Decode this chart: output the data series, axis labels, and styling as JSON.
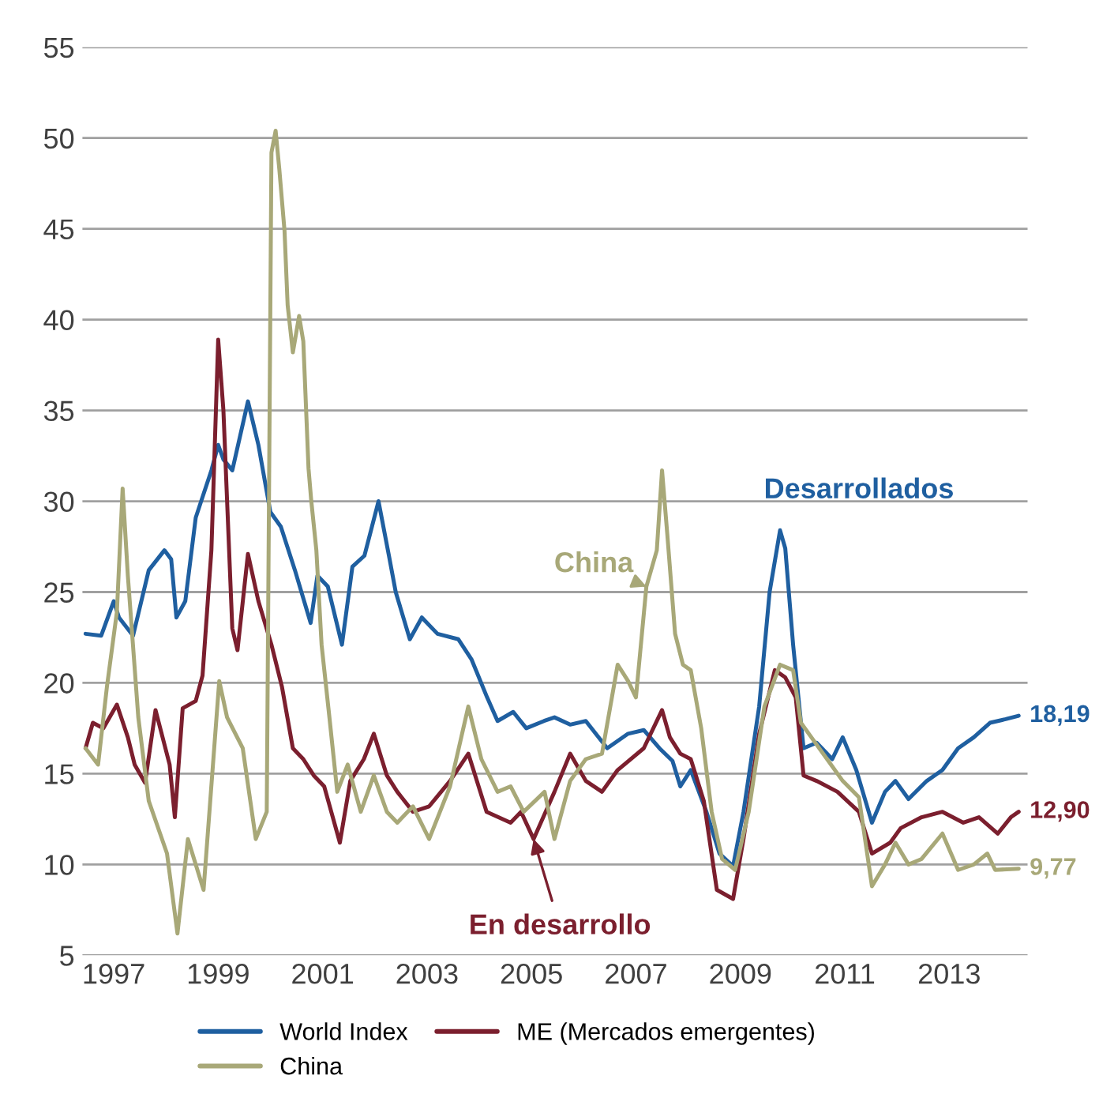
{
  "chart_data": {
    "type": "line",
    "xlim": [
      1996.4,
      2014.5
    ],
    "xticks": [
      1997,
      1999,
      2001,
      2003,
      2005,
      2007,
      2009,
      2011,
      2013
    ],
    "ylim": [
      5,
      55
    ],
    "yticks": [
      5,
      10,
      15,
      20,
      25,
      30,
      35,
      40,
      45,
      50,
      55
    ],
    "grid": "y",
    "legend": "bottom",
    "marker": "none",
    "line_style": "solid",
    "series": [
      {
        "name": "World Index",
        "color": "#1f5fa0",
        "x": [
          1996.46,
          1996.76,
          1997.0,
          1997.1,
          1997.37,
          1997.67,
          1997.97,
          1998.1,
          1998.2,
          1998.37,
          1998.57,
          1998.87,
          1999.0,
          1999.1,
          1999.27,
          1999.57,
          1999.77,
          2000.0,
          2000.2,
          2000.47,
          2000.77,
          2000.9,
          2001.1,
          2001.37,
          2001.57,
          2001.8,
          2002.07,
          2002.27,
          2002.4,
          2002.67,
          2002.9,
          2003.2,
          2003.6,
          2003.85,
          2004.15,
          2004.35,
          2004.65,
          2004.9,
          2005.24,
          2005.44,
          2005.74,
          2006.04,
          2006.45,
          2006.85,
          2007.15,
          2007.45,
          2007.7,
          2007.85,
          2008.05,
          2008.35,
          2008.6,
          2008.86,
          2009.06,
          2009.36,
          2009.56,
          2009.76,
          2009.86,
          2010.01,
          2010.21,
          2010.46,
          2010.76,
          2010.96,
          2011.22,
          2011.52,
          2011.77,
          2011.97,
          2012.22,
          2012.57,
          2012.87,
          2013.17,
          2013.47,
          2013.78,
          2014.08,
          2014.33
        ],
        "values": [
          22.7,
          22.6,
          24.5,
          23.6,
          22.6,
          26.2,
          27.3,
          26.8,
          23.6,
          24.5,
          29.1,
          31.7,
          33.1,
          32.3,
          31.7,
          35.5,
          33.1,
          29.4,
          28.6,
          26.2,
          23.3,
          25.9,
          25.3,
          22.1,
          26.4,
          27.0,
          30.0,
          27.0,
          25.0,
          22.4,
          23.6,
          22.7,
          22.4,
          21.3,
          19.2,
          17.9,
          18.4,
          17.5,
          17.9,
          18.1,
          17.7,
          17.9,
          16.4,
          17.2,
          17.4,
          16.4,
          15.7,
          14.3,
          15.2,
          12.9,
          10.6,
          9.9,
          12.9,
          18.7,
          25.0,
          28.4,
          27.4,
          22.1,
          16.4,
          16.7,
          15.8,
          17.0,
          15.2,
          12.3,
          14.0,
          14.6,
          13.6,
          14.6,
          15.2,
          16.4,
          17.0,
          17.8,
          18.0,
          18.19
        ]
      },
      {
        "name": "ME (Mercados emergentes)",
        "color": "#7b1f2e",
        "x": [
          1996.46,
          1996.6,
          1996.8,
          1997.06,
          1997.27,
          1997.4,
          1997.6,
          1997.8,
          1998.07,
          1998.17,
          1998.32,
          1998.57,
          1998.7,
          1998.87,
          1999.0,
          1999.1,
          1999.27,
          1999.37,
          1999.57,
          1999.77,
          2000.02,
          2000.22,
          2000.43,
          2000.63,
          2000.83,
          2001.03,
          2001.33,
          2001.53,
          2001.79,
          2001.98,
          2002.23,
          2002.43,
          2002.73,
          2003.04,
          2003.44,
          2003.79,
          2004.14,
          2004.6,
          2004.8,
          2005.04,
          2005.44,
          2005.74,
          2006.04,
          2006.35,
          2006.65,
          2007.15,
          2007.5,
          2007.65,
          2007.85,
          2008.05,
          2008.3,
          2008.55,
          2008.86,
          2009.06,
          2009.36,
          2009.66,
          2009.86,
          2010.06,
          2010.21,
          2010.46,
          2010.86,
          2011.27,
          2011.52,
          2011.87,
          2012.07,
          2012.47,
          2012.87,
          2013.27,
          2013.57,
          2013.93,
          2014.18,
          2014.33
        ],
        "values": [
          16.4,
          17.8,
          17.5,
          18.8,
          17.0,
          15.5,
          14.5,
          18.5,
          15.5,
          12.6,
          18.6,
          19.0,
          20.4,
          27.3,
          38.9,
          35.0,
          23.0,
          21.8,
          27.1,
          24.5,
          22.1,
          19.8,
          16.4,
          15.8,
          14.9,
          14.3,
          11.2,
          14.6,
          15.8,
          17.2,
          14.9,
          14.0,
          12.9,
          13.2,
          14.6,
          16.1,
          12.9,
          12.3,
          12.9,
          11.4,
          14.0,
          16.1,
          14.6,
          14.0,
          15.2,
          16.4,
          18.5,
          17.0,
          16.1,
          15.8,
          13.5,
          8.6,
          8.1,
          11.4,
          17.2,
          20.7,
          20.3,
          19.2,
          14.9,
          14.6,
          14.0,
          12.9,
          10.6,
          11.2,
          12.0,
          12.6,
          12.9,
          12.3,
          12.6,
          11.7,
          12.6,
          12.9
        ]
      },
      {
        "name": "China",
        "color": "#a8a878",
        "x": [
          1996.46,
          1996.7,
          1996.87,
          1997.06,
          1997.17,
          1997.27,
          1997.47,
          1997.67,
          1998.02,
          1998.22,
          1998.42,
          1998.72,
          1999.02,
          1999.17,
          1999.47,
          1999.72,
          1999.93,
          2000.02,
          2000.1,
          2000.17,
          2000.27,
          2000.33,
          2000.43,
          2000.55,
          2000.63,
          2000.73,
          2000.78,
          2000.88,
          2000.98,
          2001.13,
          2001.28,
          2001.48,
          2001.73,
          2001.98,
          2002.23,
          2002.43,
          2002.73,
          2003.04,
          2003.44,
          2003.79,
          2004.04,
          2004.35,
          2004.6,
          2004.85,
          2005.25,
          2005.44,
          2005.74,
          2006.04,
          2006.35,
          2006.65,
          2006.85,
          2007.0,
          2007.2,
          2007.4,
          2007.5,
          2007.6,
          2007.75,
          2007.9,
          2008.05,
          2008.25,
          2008.45,
          2008.65,
          2008.9,
          2009.16,
          2009.46,
          2009.76,
          2010.01,
          2010.16,
          2010.36,
          2010.66,
          2010.96,
          2011.27,
          2011.52,
          2011.77,
          2011.97,
          2012.22,
          2012.47,
          2012.87,
          2013.17,
          2013.47,
          2013.73,
          2013.88,
          2014.33
        ],
        "values": [
          16.4,
          15.5,
          19.8,
          23.9,
          30.7,
          25.9,
          18.1,
          13.5,
          10.6,
          6.2,
          11.4,
          8.6,
          20.1,
          18.1,
          16.4,
          11.4,
          12.9,
          49.2,
          50.4,
          48.3,
          44.9,
          40.8,
          38.2,
          40.2,
          38.8,
          31.8,
          30.1,
          27.3,
          22.1,
          18.1,
          14.0,
          15.5,
          12.9,
          14.9,
          12.9,
          12.3,
          13.2,
          11.4,
          14.3,
          18.7,
          15.8,
          14.0,
          14.3,
          12.9,
          14.0,
          11.4,
          14.6,
          15.8,
          16.1,
          21.0,
          20.1,
          19.2,
          25.3,
          27.3,
          31.7,
          28.2,
          22.7,
          21.0,
          20.7,
          17.5,
          12.9,
          10.3,
          9.7,
          12.9,
          18.7,
          21.0,
          20.7,
          17.8,
          17.0,
          15.8,
          14.6,
          13.7,
          8.8,
          10.0,
          11.2,
          10.0,
          10.3,
          11.7,
          9.7,
          10.0,
          10.6,
          9.7,
          9.77
        ]
      }
    ],
    "annotations": [
      {
        "text": "Desarrollados",
        "x": 2009.76,
        "y": 28.4
      },
      {
        "text": "En desarrollo",
        "x": 2005.04,
        "y": 11.4
      },
      {
        "text": "China",
        "x": 2007.2,
        "y": 25.3
      },
      {
        "text": "18,19",
        "x": 2014.33,
        "y": 18.19
      },
      {
        "text": "12,90",
        "x": 2014.33,
        "y": 12.9
      },
      {
        "text": "9,77",
        "x": 2014.33,
        "y": 9.77
      }
    ]
  }
}
